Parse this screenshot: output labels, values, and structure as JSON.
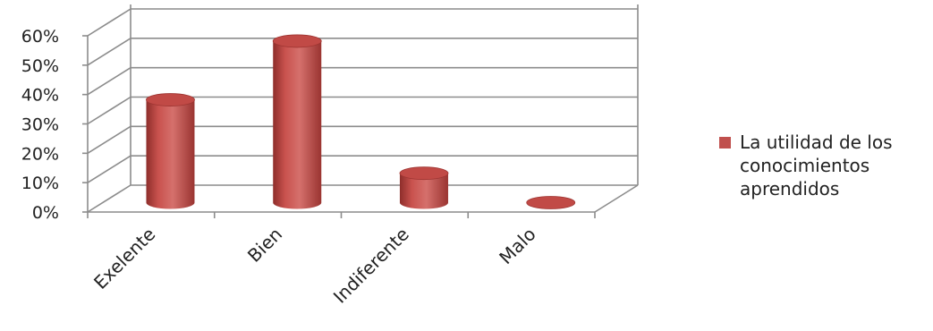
{
  "chart_data": {
    "type": "bar",
    "style": "3d-cylinder",
    "categories": [
      "Exelente",
      "Bien",
      "Indiferente",
      "Malo"
    ],
    "series": [
      {
        "name": "La utilidad de los conocimientos aprendidos",
        "values": [
          0.35,
          0.55,
          0.1,
          0.0
        ],
        "color": "#c0504d"
      }
    ],
    "y_ticks": [
      "0%",
      "10%",
      "20%",
      "30%",
      "40%",
      "50%",
      "60%"
    ],
    "ylim": [
      0,
      0.6
    ],
    "grid": true,
    "legend_position": "right",
    "title": "",
    "xlabel": "",
    "ylabel": ""
  }
}
